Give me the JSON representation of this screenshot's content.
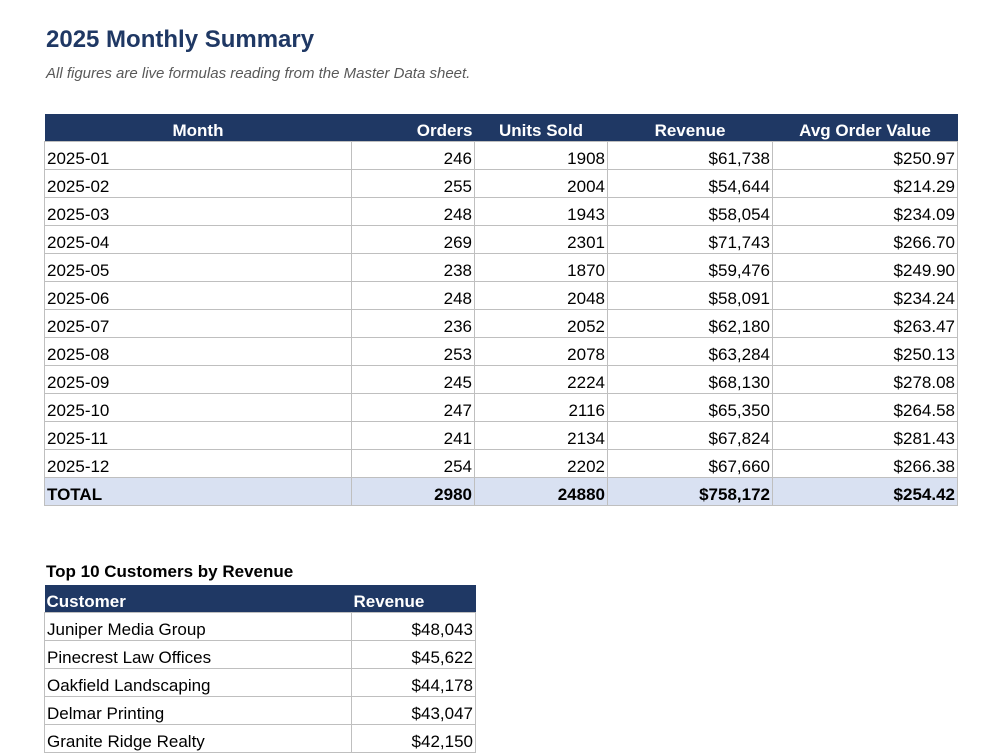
{
  "page": {
    "title": "2025 Monthly Summary",
    "subtitle": "All figures are live formulas reading from the Master Data sheet."
  },
  "summary": {
    "headers": [
      "Month",
      "Orders",
      "Units Sold",
      "Revenue",
      "Avg Order Value"
    ],
    "rows": [
      [
        "2025-01",
        "246",
        "1908",
        "$61,738",
        "$250.97"
      ],
      [
        "2025-02",
        "255",
        "2004",
        "$54,644",
        "$214.29"
      ],
      [
        "2025-03",
        "248",
        "1943",
        "$58,054",
        "$234.09"
      ],
      [
        "2025-04",
        "269",
        "2301",
        "$71,743",
        "$266.70"
      ],
      [
        "2025-05",
        "238",
        "1870",
        "$59,476",
        "$249.90"
      ],
      [
        "2025-06",
        "248",
        "2048",
        "$58,091",
        "$234.24"
      ],
      [
        "2025-07",
        "236",
        "2052",
        "$62,180",
        "$263.47"
      ],
      [
        "2025-08",
        "253",
        "2078",
        "$63,284",
        "$250.13"
      ],
      [
        "2025-09",
        "245",
        "2224",
        "$68,130",
        "$278.08"
      ],
      [
        "2025-10",
        "247",
        "2116",
        "$65,350",
        "$264.58"
      ],
      [
        "2025-11",
        "241",
        "2134",
        "$67,824",
        "$281.43"
      ],
      [
        "2025-12",
        "254",
        "2202",
        "$67,660",
        "$266.38"
      ]
    ],
    "total": [
      "TOTAL",
      "2980",
      "24880",
      "$758,172",
      "$254.42"
    ]
  },
  "customers": {
    "title": "Top 10 Customers by Revenue",
    "headers": [
      "Customer",
      "Revenue"
    ],
    "rows": [
      [
        "Juniper Media Group",
        "$48,043"
      ],
      [
        "Pinecrest Law Offices",
        "$45,622"
      ],
      [
        "Oakfield Landscaping",
        "$44,178"
      ],
      [
        "Delmar Printing",
        "$43,047"
      ],
      [
        "Granite Ridge Realty",
        "$42,150"
      ]
    ]
  },
  "colors": {
    "header_bg": "#1f3864",
    "title_color": "#1f3864",
    "total_row_bg": "#d9e1f2",
    "gridline": "#bfbfbf"
  }
}
